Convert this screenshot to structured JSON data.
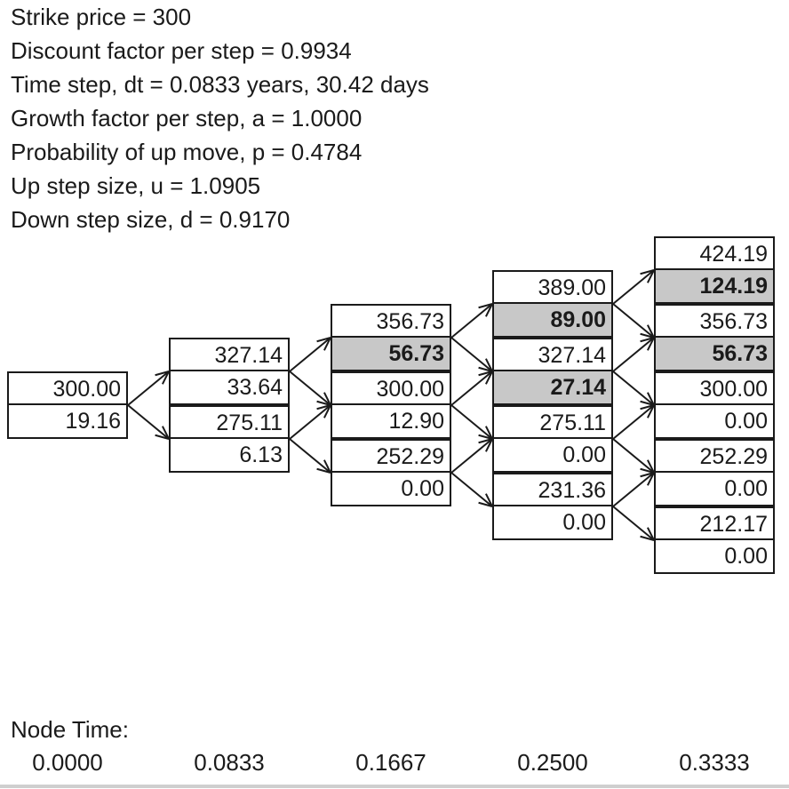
{
  "parameters": [
    "Strike price = 300",
    "Discount factor per step = 0.9934",
    "Time step, dt = 0.0833 years, 30.42 days",
    "Growth factor per step, a = 1.0000",
    "Probability of up move, p = 0.4784",
    "Up step size, u = 1.0905",
    "Down step size, d = 0.9170"
  ],
  "node_time_label": "Node Time:",
  "node_times": [
    "0.0000",
    "0.0833",
    "0.1667",
    "0.2500",
    "0.3333"
  ],
  "nodes": [
    {
      "step": 0,
      "level": 0,
      "price": "300.00",
      "option": "19.16",
      "exercised": false
    },
    {
      "step": 1,
      "level": 1,
      "price": "327.14",
      "option": "33.64",
      "exercised": false
    },
    {
      "step": 1,
      "level": -1,
      "price": "275.11",
      "option": "6.13",
      "exercised": false
    },
    {
      "step": 2,
      "level": 2,
      "price": "356.73",
      "option": "56.73",
      "exercised": true
    },
    {
      "step": 2,
      "level": 0,
      "price": "300.00",
      "option": "12.90",
      "exercised": false
    },
    {
      "step": 2,
      "level": -2,
      "price": "252.29",
      "option": "0.00",
      "exercised": false
    },
    {
      "step": 3,
      "level": 3,
      "price": "389.00",
      "option": "89.00",
      "exercised": true
    },
    {
      "step": 3,
      "level": 1,
      "price": "327.14",
      "option": "27.14",
      "exercised": true
    },
    {
      "step": 3,
      "level": -1,
      "price": "275.11",
      "option": "0.00",
      "exercised": false
    },
    {
      "step": 3,
      "level": -3,
      "price": "231.36",
      "option": "0.00",
      "exercised": false
    },
    {
      "step": 4,
      "level": 4,
      "price": "424.19",
      "option": "124.19",
      "exercised": true
    },
    {
      "step": 4,
      "level": 2,
      "price": "356.73",
      "option": "56.73",
      "exercised": true
    },
    {
      "step": 4,
      "level": 0,
      "price": "300.00",
      "option": "0.00",
      "exercised": false
    },
    {
      "step": 4,
      "level": -2,
      "price": "252.29",
      "option": "0.00",
      "exercised": false
    },
    {
      "step": 4,
      "level": -4,
      "price": "212.17",
      "option": "0.00",
      "exercised": false
    }
  ],
  "colors": {
    "line": "#1a1a1a",
    "exercised_fill": "#c8c8c8"
  }
}
